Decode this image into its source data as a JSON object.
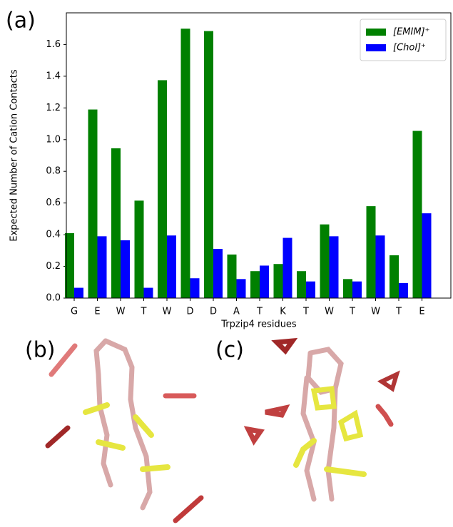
{
  "panel_labels": [
    "(a)",
    "(b)",
    "(c)"
  ],
  "chart_data": {
    "type": "bar",
    "x_label": "Trpzip4 residues",
    "y_label": "Expected Number of Cation Contacts",
    "categories": [
      "G",
      "E",
      "W",
      "T",
      "W",
      "D",
      "D",
      "A",
      "T",
      "K",
      "T",
      "W",
      "T",
      "W",
      "T",
      "E"
    ],
    "series": [
      {
        "name": "[EMIM]⁺",
        "color": "#008000",
        "values": [
          0.41,
          1.19,
          0.945,
          0.615,
          1.375,
          1.7,
          1.685,
          0.275,
          0.17,
          0.215,
          0.17,
          0.465,
          0.12,
          0.58,
          0.27,
          1.055
        ]
      },
      {
        "name": "[Chol]⁺",
        "color": "#0000ff",
        "values": [
          0.065,
          0.39,
          0.365,
          0.065,
          0.395,
          0.125,
          0.31,
          0.12,
          0.205,
          0.38,
          0.105,
          0.39,
          0.105,
          0.395,
          0.095,
          0.535
        ]
      }
    ],
    "ylim": [
      0,
      1.8
    ],
    "yticks": [
      {
        "value": 0,
        "label": "0.0"
      },
      0.2,
      0.4,
      0.6,
      0.8,
      {
        "value": 1,
        "label": "1.0"
      },
      1.2,
      1.4,
      1.6
    ],
    "legend": "upper right"
  }
}
